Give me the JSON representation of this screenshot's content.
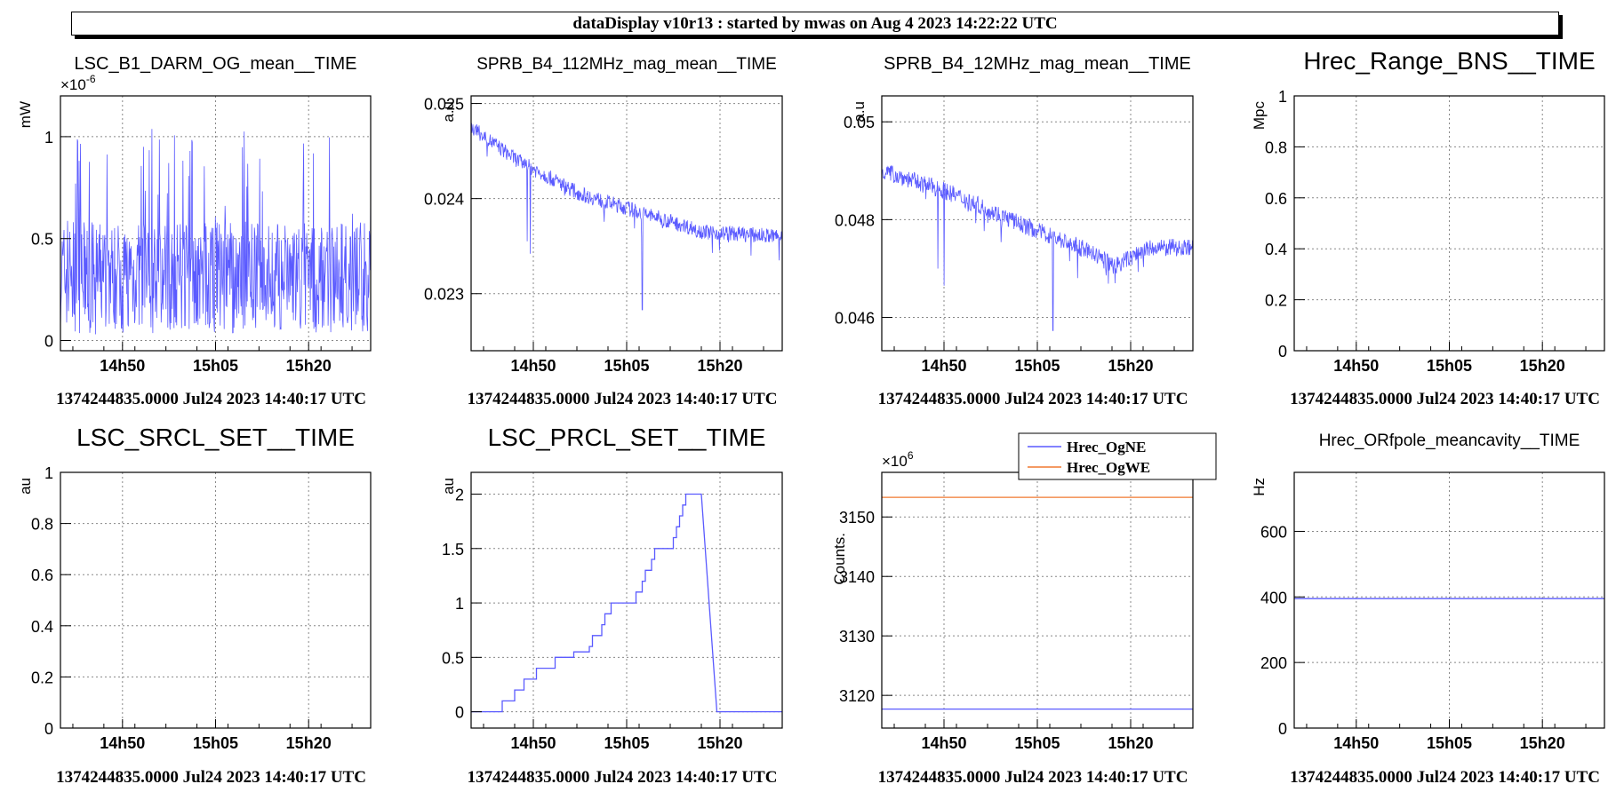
{
  "header": {
    "title": "dataDisplay v10r13 : started by mwas on Aug  4 2023 14:22:22 UTC"
  },
  "colors": {
    "series_blue": "#5a5aff",
    "series_orange": "#f07830",
    "grid": "#888888",
    "axis": "#000000"
  },
  "chart_data": [
    {
      "type": "line",
      "title": "LSC_B1_DARM_OG_mean__TIME",
      "ylabel": "mW",
      "multiplier": "×10",
      "multiplier_exp": "-6",
      "xlim": [
        0,
        1
      ],
      "ylim": [
        -0.05,
        1.2
      ],
      "yticks": [
        {
          "v": 0,
          "label": "0"
        },
        {
          "v": 0.5,
          "label": "0.5"
        },
        {
          "v": 1,
          "label": "1"
        }
      ],
      "xticks": [
        {
          "v": 0.2,
          "label": "14h50"
        },
        {
          "v": 0.5,
          "label": "15h05"
        },
        {
          "v": 0.8,
          "label": "15h20"
        }
      ],
      "xtitle": "1374244835.0000 Jul24 2023 14:40:17 UTC",
      "series": [
        {
          "gen": "noise",
          "color_key": "series_blue",
          "base": 0.32,
          "amp": 0.35,
          "spikes": 1.05,
          "points": 700
        }
      ]
    },
    {
      "type": "line",
      "title": "SPRB_B4_112MHz_mag_mean__TIME",
      "ylabel": "a.u",
      "xlim": [
        0,
        1
      ],
      "ylim": [
        0.0224,
        0.02508
      ],
      "yticks": [
        {
          "v": 0.023,
          "label": "0.023"
        },
        {
          "v": 0.024,
          "label": "0.024"
        },
        {
          "v": 0.025,
          "label": "0.025"
        }
      ],
      "xticks": [
        {
          "v": 0.2,
          "label": "14h50"
        },
        {
          "v": 0.5,
          "label": "15h05"
        },
        {
          "v": 0.8,
          "label": "15h20"
        }
      ],
      "xtitle": "1374244835.0000 Jul24 2023 14:40:17 UTC",
      "series": [
        {
          "gen": "decay",
          "color_key": "series_blue",
          "trend": [
            [
              0,
              0.02475
            ],
            [
              0.15,
              0.0244
            ],
            [
              0.35,
              0.02405
            ],
            [
              0.55,
              0.02385
            ],
            [
              0.75,
              0.02365
            ],
            [
              1,
              0.0236
            ]
          ],
          "noise": 8e-05,
          "dips": [
            [
              0.19,
              0.02342
            ],
            [
              0.55,
              0.02283
            ],
            [
              0.18,
              0.02355
            ],
            [
              0.9,
              0.0234
            ],
            [
              0.99,
              0.02335
            ]
          ],
          "points": 700
        }
      ]
    },
    {
      "type": "line",
      "title": "SPRB_B4_12MHz_mag_mean__TIME",
      "ylabel": "a.u",
      "xlim": [
        0,
        1
      ],
      "ylim": [
        0.04532,
        0.05053
      ],
      "yticks": [
        {
          "v": 0.046,
          "label": "0.046"
        },
        {
          "v": 0.048,
          "label": "0.048"
        },
        {
          "v": 0.05,
          "label": "0.05"
        }
      ],
      "xticks": [
        {
          "v": 0.2,
          "label": "14h50"
        },
        {
          "v": 0.5,
          "label": "15h05"
        },
        {
          "v": 0.8,
          "label": "15h20"
        }
      ],
      "xtitle": "1374244835.0000 Jul24 2023 14:40:17 UTC",
      "series": [
        {
          "gen": "decay",
          "color_key": "series_blue",
          "trend": [
            [
              0,
              0.049
            ],
            [
              0.2,
              0.0486
            ],
            [
              0.45,
              0.0479
            ],
            [
              0.65,
              0.0474
            ],
            [
              0.75,
              0.04705
            ],
            [
              0.85,
              0.0474
            ],
            [
              1,
              0.04745
            ]
          ],
          "noise": 0.00018,
          "dips": [
            [
              0.2,
              0.04665
            ],
            [
              0.55,
              0.04573
            ],
            [
              0.75,
              0.0467
            ],
            [
              0.18,
              0.047
            ]
          ],
          "points": 700
        }
      ]
    },
    {
      "type": "line",
      "title": "Hrec_Range_BNS__TIME",
      "ylabel": "Mpc",
      "xlim": [
        0,
        1
      ],
      "ylim": [
        0,
        1
      ],
      "yticks": [
        {
          "v": 0,
          "label": "0"
        },
        {
          "v": 0.2,
          "label": "0.2"
        },
        {
          "v": 0.4,
          "label": "0.4"
        },
        {
          "v": 0.6,
          "label": "0.6"
        },
        {
          "v": 0.8,
          "label": "0.8"
        },
        {
          "v": 1,
          "label": "1"
        }
      ],
      "xticks": [
        {
          "v": 0.2,
          "label": "14h50"
        },
        {
          "v": 0.5,
          "label": "15h05"
        },
        {
          "v": 0.8,
          "label": "15h20"
        }
      ],
      "xtitle": "1374244835.0000 Jul24 2023 14:40:17 UTC",
      "series": []
    },
    {
      "type": "line",
      "title": "LSC_SRCL_SET__TIME",
      "ylabel": "au",
      "xlim": [
        0,
        1
      ],
      "ylim": [
        0,
        1
      ],
      "yticks": [
        {
          "v": 0,
          "label": "0"
        },
        {
          "v": 0.2,
          "label": "0.2"
        },
        {
          "v": 0.4,
          "label": "0.4"
        },
        {
          "v": 0.6,
          "label": "0.6"
        },
        {
          "v": 0.8,
          "label": "0.8"
        },
        {
          "v": 1,
          "label": "1"
        }
      ],
      "xticks": [
        {
          "v": 0.2,
          "label": "14h50"
        },
        {
          "v": 0.5,
          "label": "15h05"
        },
        {
          "v": 0.8,
          "label": "15h20"
        }
      ],
      "xtitle": "1374244835.0000 Jul24 2023 14:40:17 UTC",
      "series": []
    },
    {
      "type": "line",
      "title": "LSC_PRCL_SET__TIME",
      "ylabel": "au",
      "xlim": [
        0,
        1
      ],
      "ylim": [
        -0.15,
        2.2
      ],
      "yticks": [
        {
          "v": 0,
          "label": "0"
        },
        {
          "v": 0.5,
          "label": "0.5"
        },
        {
          "v": 1,
          "label": "1"
        },
        {
          "v": 1.5,
          "label": "1.5"
        },
        {
          "v": 2,
          "label": "2"
        }
      ],
      "xticks": [
        {
          "v": 0.2,
          "label": "14h50"
        },
        {
          "v": 0.5,
          "label": "15h05"
        },
        {
          "v": 0.8,
          "label": "15h20"
        }
      ],
      "xtitle": "1374244835.0000 Jul24 2023 14:40:17 UTC",
      "series": [
        {
          "gen": "points",
          "color_key": "series_blue",
          "points": [
            [
              0,
              0
            ],
            [
              0.1,
              0
            ],
            [
              0.1,
              0.1
            ],
            [
              0.14,
              0.1
            ],
            [
              0.14,
              0.2
            ],
            [
              0.17,
              0.2
            ],
            [
              0.17,
              0.3
            ],
            [
              0.21,
              0.3
            ],
            [
              0.21,
              0.4
            ],
            [
              0.27,
              0.4
            ],
            [
              0.27,
              0.5
            ],
            [
              0.33,
              0.5
            ],
            [
              0.33,
              0.55
            ],
            [
              0.38,
              0.55
            ],
            [
              0.38,
              0.6
            ],
            [
              0.39,
              0.6
            ],
            [
              0.39,
              0.7
            ],
            [
              0.42,
              0.7
            ],
            [
              0.42,
              0.8
            ],
            [
              0.43,
              0.8
            ],
            [
              0.43,
              0.9
            ],
            [
              0.45,
              0.9
            ],
            [
              0.45,
              1.0
            ],
            [
              0.53,
              1.0
            ],
            [
              0.53,
              1.1
            ],
            [
              0.55,
              1.1
            ],
            [
              0.55,
              1.2
            ],
            [
              0.56,
              1.2
            ],
            [
              0.56,
              1.3
            ],
            [
              0.58,
              1.3
            ],
            [
              0.58,
              1.4
            ],
            [
              0.59,
              1.4
            ],
            [
              0.59,
              1.5
            ],
            [
              0.65,
              1.5
            ],
            [
              0.65,
              1.6
            ],
            [
              0.66,
              1.6
            ],
            [
              0.66,
              1.7
            ],
            [
              0.67,
              1.7
            ],
            [
              0.67,
              1.8
            ],
            [
              0.68,
              1.8
            ],
            [
              0.68,
              1.9
            ],
            [
              0.69,
              1.9
            ],
            [
              0.69,
              2.0
            ],
            [
              0.74,
              2.0
            ],
            [
              0.79,
              0
            ],
            [
              1,
              0
            ]
          ]
        }
      ]
    },
    {
      "type": "line",
      "title": "",
      "ylabel": "Counts.",
      "multiplier": "×10",
      "multiplier_exp": "6",
      "xlim": [
        0,
        1
      ],
      "ylim": [
        3114.5,
        3157.5
      ],
      "yticks": [
        {
          "v": 3120,
          "label": "3120"
        },
        {
          "v": 3130,
          "label": "3130"
        },
        {
          "v": 3140,
          "label": "3140"
        },
        {
          "v": 3150,
          "label": "3150"
        }
      ],
      "xticks": [
        {
          "v": 0.2,
          "label": "14h50"
        },
        {
          "v": 0.5,
          "label": "15h05"
        },
        {
          "v": 0.8,
          "label": "15h20"
        }
      ],
      "xtitle": "1374244835.0000 Jul24 2023 14:40:17 UTC",
      "legend": [
        {
          "name": "Hrec_OgNE",
          "color_key": "series_blue"
        },
        {
          "name": "Hrec_OgWE",
          "color_key": "series_orange"
        }
      ],
      "series": [
        {
          "gen": "points",
          "name": "Hrec_OgNE",
          "color_key": "series_blue",
          "points": [
            [
              0,
              3117.7
            ],
            [
              1,
              3117.7
            ]
          ]
        },
        {
          "gen": "points",
          "name": "Hrec_OgWE",
          "color_key": "series_orange",
          "points": [
            [
              0,
              3153.3
            ],
            [
              1,
              3153.3
            ]
          ]
        }
      ]
    },
    {
      "type": "line",
      "title": "Hrec_ORfpole_meancavity__TIME",
      "ylabel": "Hz",
      "xlim": [
        0,
        1
      ],
      "ylim": [
        0,
        780
      ],
      "yticks": [
        {
          "v": 0,
          "label": "0"
        },
        {
          "v": 200,
          "label": "200"
        },
        {
          "v": 400,
          "label": "400"
        },
        {
          "v": 600,
          "label": "600"
        }
      ],
      "xticks": [
        {
          "v": 0.2,
          "label": "14h50"
        },
        {
          "v": 0.5,
          "label": "15h05"
        },
        {
          "v": 0.8,
          "label": "15h20"
        }
      ],
      "xtitle": "1374244835.0000 Jul24 2023 14:40:17 UTC",
      "series": [
        {
          "gen": "points",
          "color_key": "series_blue",
          "points": [
            [
              0,
              395
            ],
            [
              1,
              395
            ]
          ]
        }
      ]
    }
  ]
}
